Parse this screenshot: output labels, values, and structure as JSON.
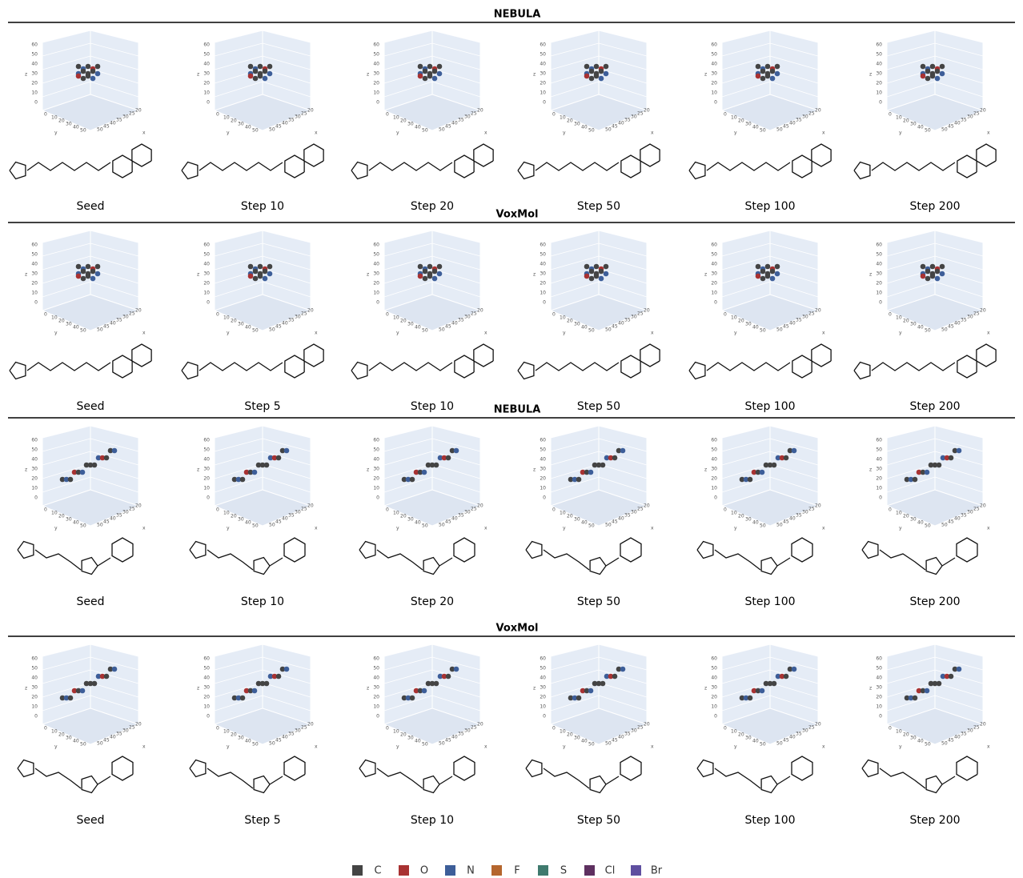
{
  "sections": [
    {
      "title": "NEBULA",
      "panels": [
        "Seed",
        "Step 10",
        "Step 20",
        "Step 50",
        "Step 100",
        "Step 200"
      ]
    },
    {
      "title": "VoxMol",
      "panels": [
        "Seed",
        "Step 5",
        "Step 10",
        "Step 50",
        "Step 100",
        "Step 200"
      ]
    },
    {
      "title": "NEBULA",
      "panels": [
        "Seed",
        "Step 10",
        "Step 20",
        "Step 50",
        "Step 100",
        "Step 200"
      ]
    },
    {
      "title": "VoxMol",
      "panels": [
        "Seed",
        "Step 5",
        "Step 10",
        "Step 50",
        "Step 100",
        "Step 200"
      ]
    }
  ],
  "plot_axes": {
    "z_title": "z",
    "y_title": "y",
    "x_title": "x",
    "z_ticks": [
      "60",
      "50",
      "40",
      "30",
      "20",
      "10",
      "0"
    ],
    "y_ticks": [
      "0",
      "10",
      "20",
      "30",
      "40",
      "50"
    ],
    "x_ticks": [
      "50",
      "45",
      "40",
      "35",
      "30",
      "25",
      "20"
    ]
  },
  "legend": [
    {
      "label": "C",
      "color": "#444444"
    },
    {
      "label": "O",
      "color": "#a83232"
    },
    {
      "label": "N",
      "color": "#3d5e99"
    },
    {
      "label": "F",
      "color": "#b5662e"
    },
    {
      "label": "S",
      "color": "#3f7a6e"
    },
    {
      "label": "Cl",
      "color": "#5e3060"
    },
    {
      "label": "Br",
      "color": "#5f4fa0"
    }
  ]
}
